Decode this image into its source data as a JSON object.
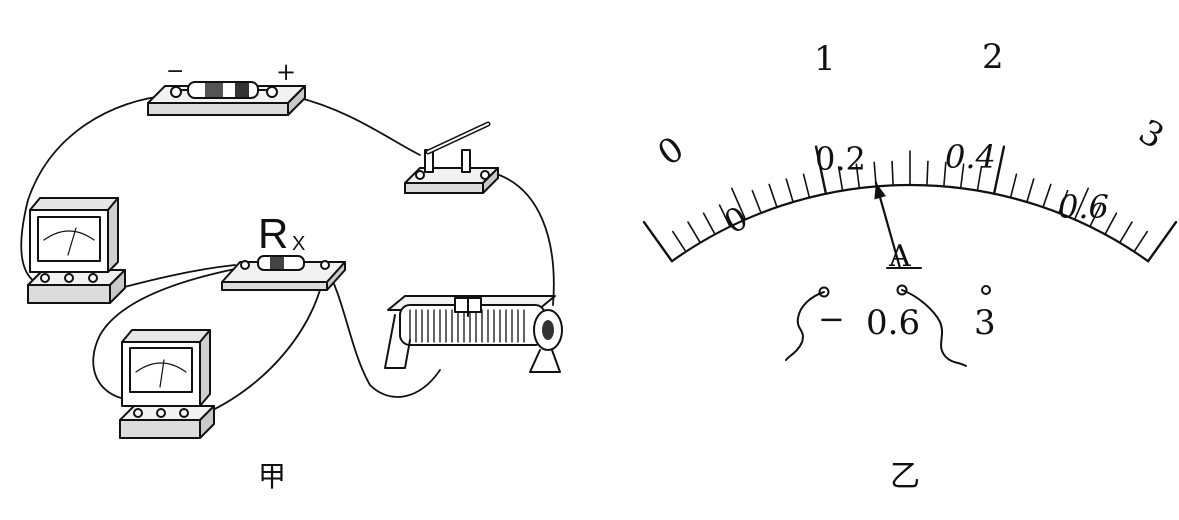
{
  "figure_a": {
    "caption": "甲",
    "resistor_label": "R",
    "resistor_subscript": "X",
    "battery_minus": "−",
    "battery_plus": "+"
  },
  "figure_b": {
    "caption": "乙",
    "meter_symbol": "A",
    "outer_scale": [
      "0",
      "1",
      "2",
      "3"
    ],
    "inner_scale": [
      "0",
      "0.2",
      "0.4",
      "0.6"
    ],
    "terminal_minus": "−",
    "terminal_low": "0.6",
    "terminal_high": "3",
    "pointer_reading": 0.26
  }
}
